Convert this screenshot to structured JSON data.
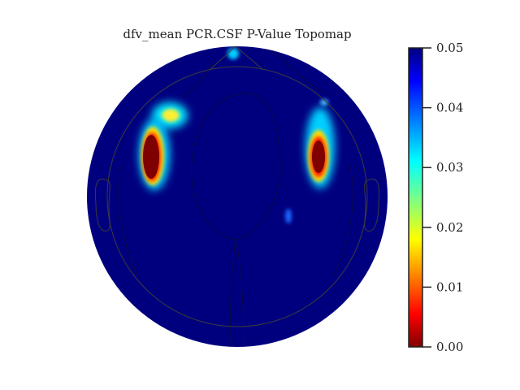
{
  "chart_data": {
    "type": "heatmap",
    "title": "dfv_mean PCR.CSF P-Value Topomap",
    "colormap": "jet",
    "colorbar": {
      "vmin": 0.0,
      "vmax": 0.05,
      "ticks": [
        0.0,
        0.01,
        0.02,
        0.03,
        0.04,
        0.05
      ],
      "tick_labels": [
        "0.00",
        "0.01",
        "0.02",
        "0.03",
        "0.04",
        "0.05"
      ]
    },
    "background_value": 0.05,
    "regions": [
      {
        "name": "left-frontotemporal-cluster",
        "min_p": 0.0
      },
      {
        "name": "left-frontal-spot",
        "min_p": 0.025
      },
      {
        "name": "right-frontotemporal-cluster",
        "min_p": 0.0
      },
      {
        "name": "right-parietal-spot",
        "min_p": 0.04
      },
      {
        "name": "nasion-spot",
        "min_p": 0.035
      }
    ]
  }
}
